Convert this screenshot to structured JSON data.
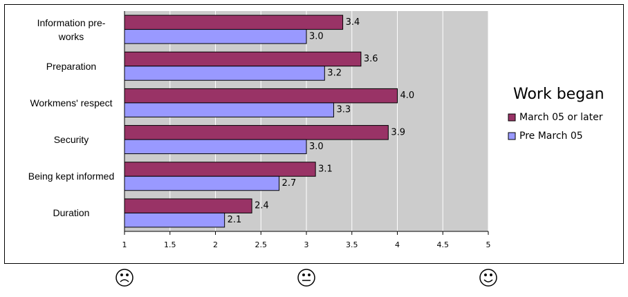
{
  "chart_data": {
    "type": "bar",
    "orientation": "horizontal",
    "categories": [
      "Information pre-works",
      "Preparation",
      "Workmens' respect",
      "Security",
      "Being kept informed",
      "Duration"
    ],
    "series": [
      {
        "name": "March 05 or later",
        "color": "#993366",
        "values": [
          3.4,
          3.6,
          4.0,
          3.9,
          3.1,
          2.4
        ],
        "value_labels": [
          "3.4",
          "3.6",
          "4.0",
          "3.9",
          "3.1",
          "2.4"
        ]
      },
      {
        "name": "Pre March 05",
        "color": "#9999ff",
        "values": [
          3.0,
          3.2,
          3.3,
          3.0,
          2.7,
          2.1
        ],
        "value_labels": [
          "3.0",
          "3.2",
          "3.3",
          "3.0",
          "2.7",
          "2.1"
        ]
      }
    ],
    "xlim": [
      1,
      5
    ],
    "xticks": [
      1,
      1.5,
      2,
      2.5,
      3,
      3.5,
      4,
      4.5,
      5
    ],
    "grid": true,
    "legend_title": "Work began",
    "legend": "right"
  }
}
